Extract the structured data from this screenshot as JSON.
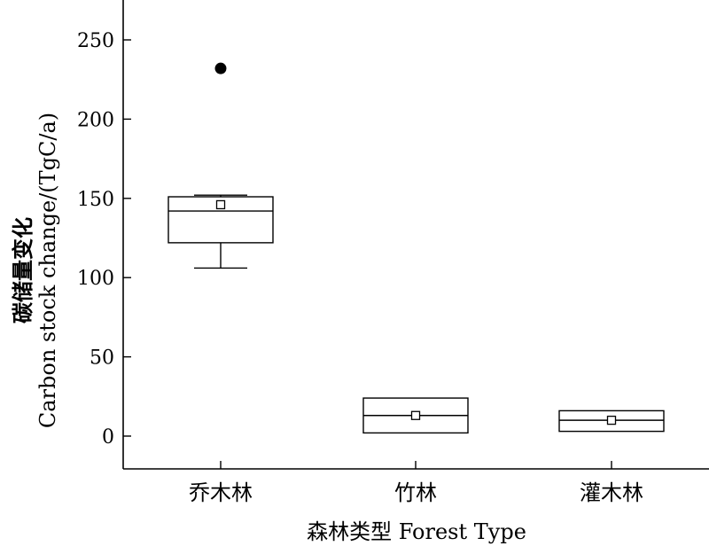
{
  "chart_data": {
    "type": "box",
    "title": "",
    "xlabel": "森林类型  Forest Type",
    "ylabel": [
      "碳储量变化",
      "Carbon stock change/(TgC/a)"
    ],
    "ylim": [
      -20,
      275
    ],
    "yticks": [
      0,
      50,
      100,
      150,
      200,
      250
    ],
    "categories": [
      "乔木林",
      "竹林",
      "灌木林"
    ],
    "boxes": [
      {
        "category": "乔木林",
        "whisker_low": 106,
        "q1": 122,
        "median": 142,
        "q3": 151,
        "whisker_high": 152,
        "mean": 146,
        "outliers": [
          232
        ]
      },
      {
        "category": "竹林",
        "whisker_low": 2,
        "q1": 2,
        "median": 13,
        "q3": 24,
        "whisker_high": 24,
        "mean": 13,
        "outliers": []
      },
      {
        "category": "灌木林",
        "whisker_low": 3,
        "q1": 3,
        "median": 10,
        "q3": 16,
        "whisker_high": 16,
        "mean": 10,
        "outliers": []
      }
    ],
    "grid": false,
    "legend": "none"
  }
}
